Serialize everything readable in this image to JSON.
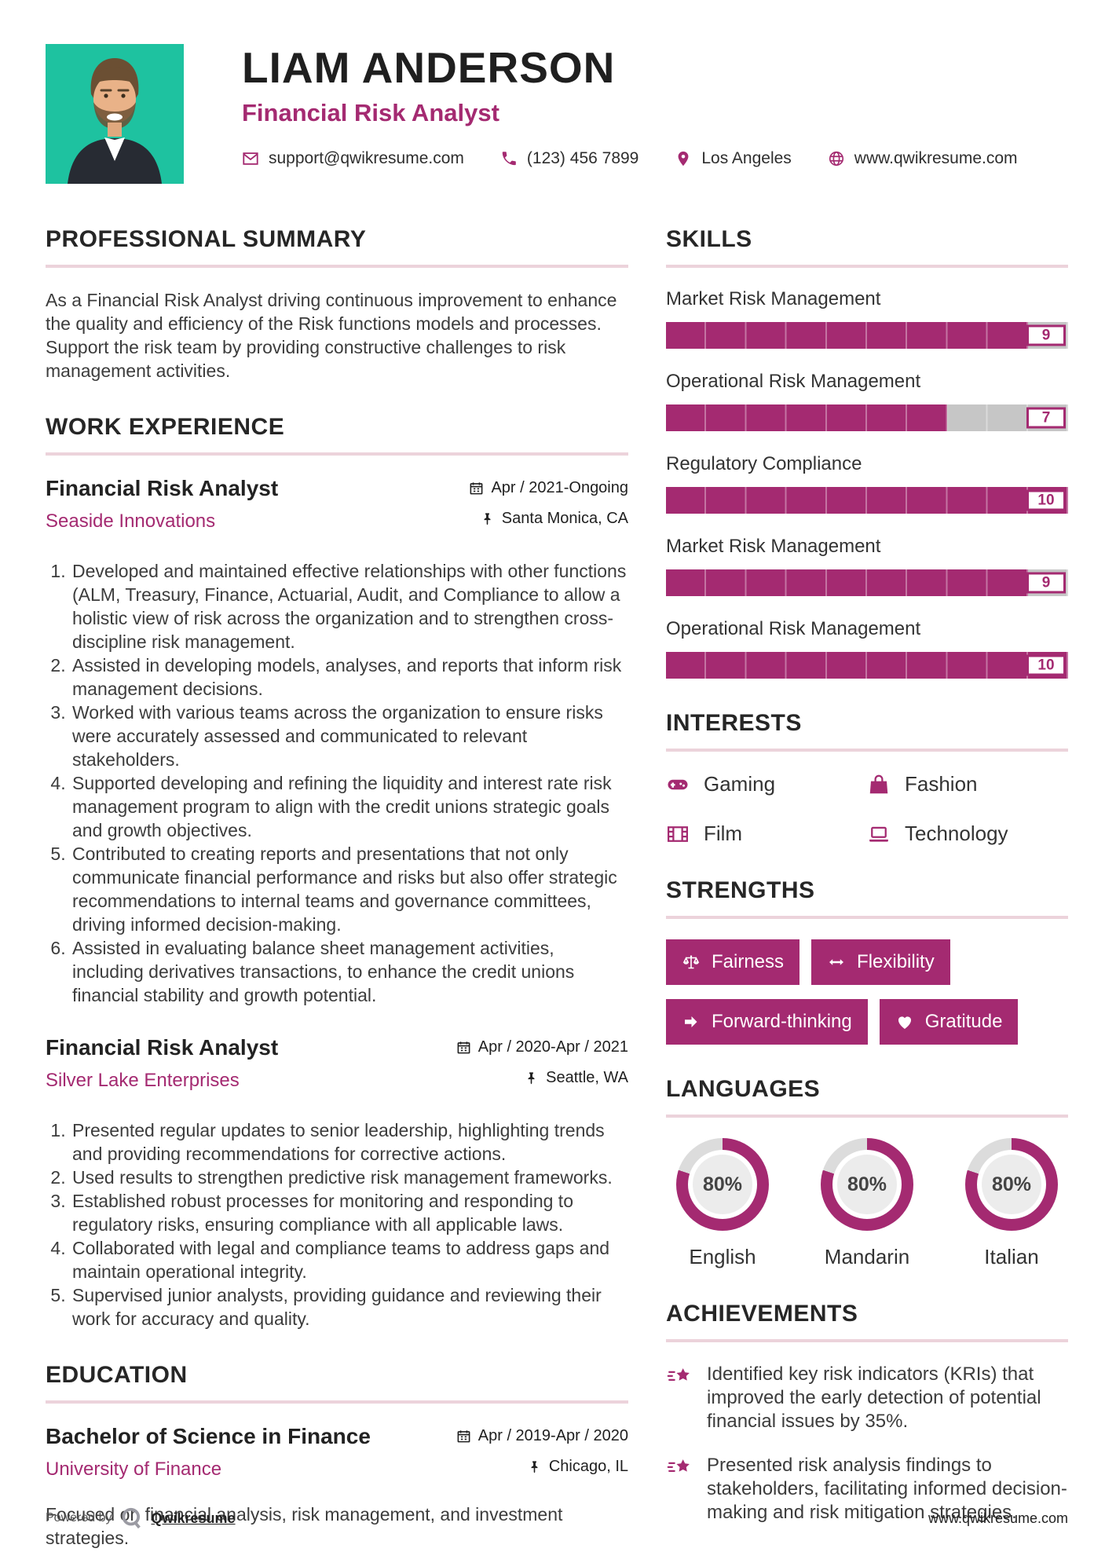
{
  "colors": {
    "accent": "#a42a71",
    "photo_bg": "#1ec2a0",
    "track": "#c6c6c6",
    "rule": "#ecd3db",
    "ring_rest": "#dcdcdc",
    "disc": "#ececec"
  },
  "header": {
    "name": "LIAM ANDERSON",
    "title": "Financial Risk Analyst",
    "contacts": [
      {
        "icon": "envelope-icon",
        "text": "support@qwikresume.com"
      },
      {
        "icon": "phone-icon",
        "text": "(123) 456 7899"
      },
      {
        "icon": "pin-icon",
        "text": "Los Angeles"
      },
      {
        "icon": "globe-icon",
        "text": "www.qwikresume.com"
      }
    ]
  },
  "summary": {
    "heading": "PROFESSIONAL SUMMARY",
    "text": "As a Financial Risk Analyst driving continuous improvement to enhance the quality and efficiency of the Risk functions models and processes. Support the risk team by providing constructive challenges to risk management activities."
  },
  "work": {
    "heading": "WORK EXPERIENCE",
    "jobs": [
      {
        "title": "Financial Risk Analyst",
        "company": "Seaside Innovations",
        "date": "Apr / 2021-Ongoing",
        "location": "Santa Monica, CA",
        "bullets": [
          "Developed and maintained effective relationships with other functions (ALM, Treasury, Finance, Actuarial, Audit, and Compliance to allow a holistic view of risk across the organization and to strengthen cross-discipline risk management.",
          "Assisted in developing models, analyses, and reports that inform risk management decisions.",
          "Worked with various teams across the organization to ensure risks were accurately assessed and communicated to relevant stakeholders.",
          "Supported developing and refining the liquidity and interest rate risk management program to align with the credit unions strategic goals and growth objectives.",
          "Contributed to creating reports and presentations that not only communicate financial performance and risks but also offer strategic recommendations to internal teams and governance committees, driving informed decision-making.",
          "Assisted in evaluating balance sheet management activities, including derivatives transactions, to enhance the credit unions financial stability and growth potential."
        ]
      },
      {
        "title": "Financial Risk Analyst",
        "company": "Silver Lake Enterprises",
        "date": "Apr / 2020-Apr / 2021",
        "location": "Seattle, WA",
        "bullets": [
          "Presented regular updates to senior leadership, highlighting trends and providing recommendations for corrective actions.",
          "Used results to strengthen predictive risk management frameworks.",
          "Established robust processes for monitoring and responding to regulatory risks, ensuring compliance with all applicable laws.",
          "Collaborated with legal and compliance teams to address gaps and maintain operational integrity.",
          "Supervised junior analysts, providing guidance and reviewing their work for accuracy and quality."
        ]
      }
    ]
  },
  "education": {
    "heading": "EDUCATION",
    "degree": "Bachelor of Science in Finance",
    "school": "University of Finance",
    "date": "Apr / 2019-Apr / 2020",
    "location": "Chicago, IL",
    "description": "Focused on financial analysis, risk management, and investment strategies."
  },
  "skills": {
    "heading": "SKILLS",
    "max": 10,
    "items": [
      {
        "label": "Market Risk Management",
        "value": 9
      },
      {
        "label": "Operational Risk Management",
        "value": 7
      },
      {
        "label": "Regulatory Compliance",
        "value": 10
      },
      {
        "label": "Market Risk Management",
        "value": 9
      },
      {
        "label": "Operational Risk Management",
        "value": 10
      }
    ]
  },
  "interests": {
    "heading": "INTERESTS",
    "items": [
      {
        "icon": "gamepad-icon",
        "label": "Gaming"
      },
      {
        "icon": "bag-icon",
        "label": "Fashion"
      },
      {
        "icon": "film-icon",
        "label": "Film"
      },
      {
        "icon": "laptop-icon",
        "label": "Technology"
      }
    ]
  },
  "strengths": {
    "heading": "STRENGTHS",
    "items": [
      {
        "icon": "scale-icon",
        "label": "Fairness"
      },
      {
        "icon": "arrows-icon",
        "label": "Flexibility"
      },
      {
        "icon": "arrow-icon",
        "label": "Forward-thinking"
      },
      {
        "icon": "heart-icon",
        "label": "Gratitude"
      }
    ]
  },
  "languages": {
    "heading": "LANGUAGES",
    "items": [
      {
        "label": "English",
        "percent": 80
      },
      {
        "label": "Mandarin",
        "percent": 80
      },
      {
        "label": "Italian",
        "percent": 80
      }
    ]
  },
  "achievements": {
    "heading": "ACHIEVEMENTS",
    "items": [
      "Identified key risk indicators (KRIs) that improved the early detection of potential financial issues by 35%.",
      "Presented risk analysis findings to stakeholders, facilitating informed decision-making and risk mitigation strategies."
    ]
  },
  "footer": {
    "powered_by": "Powered by",
    "brand": "Qwikresume",
    "site": "www.qwikresume.com"
  }
}
